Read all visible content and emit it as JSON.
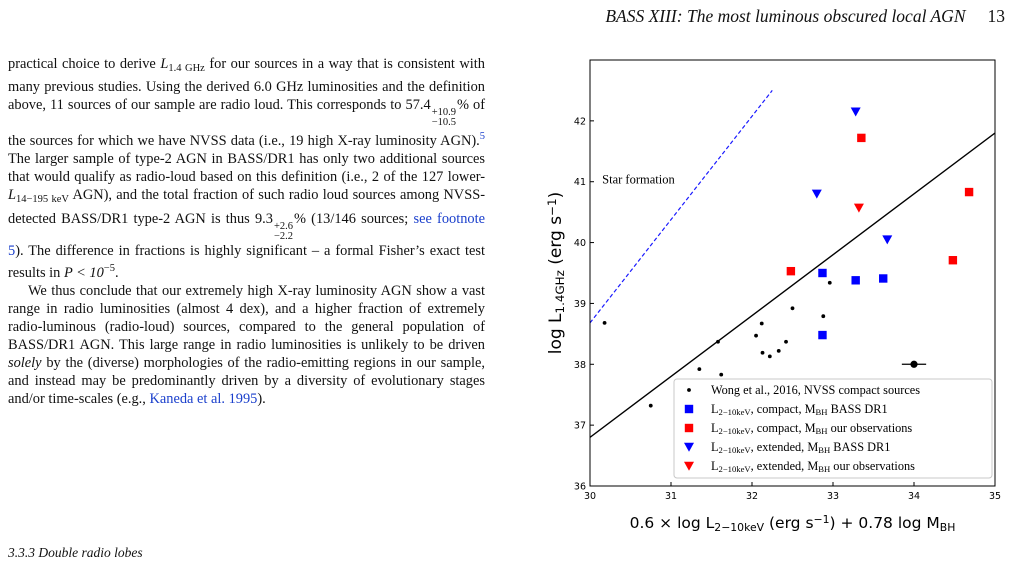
{
  "header": {
    "running_title": "BASS XIII: The most luminous obscured local AGN",
    "page_number": "13"
  },
  "text": {
    "p1_a": "practical choice to derive ",
    "p1_L": "L",
    "p1_Lsub": "1.4 GHz",
    "p1_b": " for our sources in a way that is consistent with many previous studies. Using the derived 6.0 GHz luminosities and the definition above, 11 sources of our sample are radio loud. This corresponds to 57.4",
    "p1_pct_sup": "+10.9",
    "p1_pct_sub": "−10.5",
    "p1_c": "% of the sources for which we have NVSS data (i.e., 19 high X-ray luminosity AGN).",
    "p1_fn": "5",
    "p1_d": " The larger sample of type-2 AGN in BASS/DR1 has only two additional sources that would qualify as radio-loud based on this definition (i.e., 2 of the 127 lower-",
    "p1_L2": "L",
    "p1_L2sub": "14−195 keV",
    "p1_e": " AGN), and the total fraction of such radio loud sources among NVSS-detected BASS/DR1 type-2 AGN is thus 9.3",
    "p1_pct2_sup": "+2.6",
    "p1_pct2_sub": "−2.2",
    "p1_f": "% (13/146 sources; ",
    "p1_fnlink": "see footnote 5",
    "p1_g": "). The difference in fractions is highly significant – a formal Fisher’s exact test results in ",
    "p1_P": "P < 10",
    "p1_Psup": "−5",
    "p1_h": ".",
    "p2_a": "We thus conclude that our extremely high X-ray luminosity AGN show a vast range in radio luminosities (almost 4 dex), and a higher fraction of extremely radio-luminous (radio-loud) sources, compared to the general population of BASS/DR1 AGN. This large range in radio luminosities is unlikely to be driven ",
    "p2_em": "solely",
    "p2_b": " by the (diverse) morphologies of the radio-emitting regions in our sample, and instead may be predominantly driven by a diversity of evolutionary stages and/or time-scales (e.g., ",
    "p2_cite": "Kaneda et al. 1995",
    "p2_c": ").",
    "section": "3.3.3   Double radio lobes"
  },
  "chart_data": {
    "type": "scatter",
    "xlabel": "0.6 × log L_{2−10keV} (erg s^{−1}) + 0.78 log M_{BH}",
    "ylabel": "log L_{1.4GHz} (erg s^{−1})",
    "xlim": [
      30,
      35
    ],
    "ylim": [
      36,
      43
    ],
    "xticks": [
      30,
      31,
      32,
      33,
      34,
      35
    ],
    "yticks": [
      36,
      37,
      38,
      39,
      40,
      41,
      42
    ],
    "annotation": "Star formation",
    "lines": [
      {
        "kind": "solid",
        "color": "#000000",
        "points": [
          [
            30,
            36.8
          ],
          [
            35,
            41.8
          ]
        ]
      },
      {
        "kind": "dashed",
        "color": "#1a1aff",
        "points": [
          [
            30,
            38.68
          ],
          [
            32.25,
            42.5
          ]
        ]
      }
    ],
    "errorbar": {
      "x": 34.0,
      "y": 38.0,
      "xerr": 0.15
    },
    "series": [
      {
        "name": "Wong et al., 2016, NVSS compact sources",
        "marker": "dot",
        "color": "#000000",
        "points": [
          [
            30.18,
            38.68
          ],
          [
            30.75,
            37.32
          ],
          [
            31.35,
            37.92
          ],
          [
            31.58,
            38.37
          ],
          [
            31.62,
            37.83
          ],
          [
            32.05,
            38.47
          ],
          [
            32.12,
            38.67
          ],
          [
            32.13,
            38.19
          ],
          [
            32.22,
            38.13
          ],
          [
            32.33,
            38.22
          ],
          [
            32.42,
            38.37
          ],
          [
            32.5,
            38.92
          ],
          [
            32.88,
            38.79
          ],
          [
            32.96,
            39.34
          ]
        ]
      },
      {
        "name": "L_{2−10keV}, compact, M_{BH} BASS DR1",
        "marker": "square",
        "color": "#0000ff",
        "points": [
          [
            32.87,
            39.5
          ],
          [
            32.87,
            38.48
          ],
          [
            33.28,
            39.38
          ],
          [
            33.62,
            39.41
          ]
        ]
      },
      {
        "name": "L_{2−10keV}, compact, M_{BH} our observations",
        "marker": "square",
        "color": "#ff0000",
        "points": [
          [
            32.48,
            39.53
          ],
          [
            33.35,
            41.72
          ],
          [
            34.48,
            39.71
          ],
          [
            34.68,
            40.83
          ]
        ]
      },
      {
        "name": "L_{2−10keV}, extended, M_{BH} BASS DR1",
        "marker": "tri-down",
        "color": "#0000ff",
        "points": [
          [
            33.28,
            42.15
          ],
          [
            32.8,
            40.8
          ],
          [
            33.67,
            40.05
          ]
        ]
      },
      {
        "name": "L_{2−10keV}, extended, M_{BH} our observations",
        "marker": "tri-down",
        "color": "#ff0000",
        "points": [
          [
            33.32,
            40.57
          ]
        ]
      }
    ],
    "legend": {
      "placement": "lower-right"
    }
  }
}
